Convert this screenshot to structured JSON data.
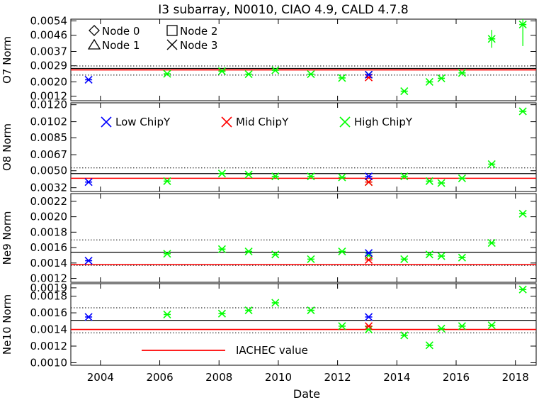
{
  "title": "I3 subarray,   N0010, CIAO 4.9, CALD 4.7.8",
  "xlabel": "Date",
  "x_ticks": [
    2004,
    2006,
    2008,
    2010,
    2012,
    2014,
    2016,
    2018
  ],
  "xlim": [
    2003.0,
    2018.7
  ],
  "node_legend": [
    {
      "symbol": "diamond",
      "label": "Node 0"
    },
    {
      "symbol": "square",
      "label": "Node 2"
    },
    {
      "symbol": "triangle",
      "label": "Node 1"
    },
    {
      "symbol": "x",
      "label": "Node 3"
    }
  ],
  "chipy_legend": [
    {
      "label": "Low ChipY",
      "color": "#0000ff"
    },
    {
      "label": "Mid ChipY",
      "color": "#ff0000"
    },
    {
      "label": "High ChipY",
      "color": "#00ff00"
    }
  ],
  "iachec_legend": {
    "label": "IACHEC value",
    "color": "#ff0000"
  },
  "chart_data": [
    {
      "type": "scatter",
      "panel": "O7",
      "ylabel": "O7 Norm",
      "ylim": [
        0.00095,
        0.0055
      ],
      "y_ticks": [
        "0.0054",
        "0.0046",
        "0.0037",
        "0.0029",
        "0.0020",
        "0.0012"
      ],
      "y_tick_values": [
        0.0054,
        0.0046,
        0.0037,
        0.0029,
        0.002,
        0.0012
      ],
      "iachec": 0.00267,
      "mean": 0.00275,
      "dotted": [
        0.00289,
        0.00238
      ],
      "series": [
        {
          "name": "Low ChipY",
          "color": "#0000ff",
          "points": [
            {
              "x": 2003.6,
              "y": 0.00212
            },
            {
              "x": 2013.05,
              "y": 0.0024
            }
          ]
        },
        {
          "name": "Mid ChipY",
          "color": "#ff0000",
          "points": [
            {
              "x": 2013.05,
              "y": 0.00225
            }
          ]
        },
        {
          "name": "High ChipY",
          "color": "#00ff00",
          "points": [
            {
              "x": 2006.25,
              "y": 0.00245
            },
            {
              "x": 2008.1,
              "y": 0.0026
            },
            {
              "x": 2009.0,
              "y": 0.00243
            },
            {
              "x": 2009.9,
              "y": 0.00265
            },
            {
              "x": 2011.1,
              "y": 0.00243
            },
            {
              "x": 2012.15,
              "y": 0.00222
            },
            {
              "x": 2013.05,
              "y": 0.0024
            },
            {
              "x": 2014.25,
              "y": 0.00148
            },
            {
              "x": 2015.1,
              "y": 0.002
            },
            {
              "x": 2015.5,
              "y": 0.0022
            },
            {
              "x": 2016.2,
              "y": 0.0025
            },
            {
              "x": 2017.2,
              "y": 0.0044,
              "err": 0.0005
            },
            {
              "x": 2018.25,
              "y": 0.0052,
              "err": 0.0012
            }
          ]
        }
      ]
    },
    {
      "type": "scatter",
      "panel": "O8",
      "ylabel": "O8 Norm",
      "ylim": [
        0.0028,
        0.0122
      ],
      "y_ticks": [
        "0.0120",
        "0.0102",
        "0.0085",
        "0.0067",
        "0.0050",
        "0.0032"
      ],
      "y_tick_values": [
        0.012,
        0.0102,
        0.0085,
        0.0067,
        0.005,
        0.0032
      ],
      "iachec": 0.0042,
      "mean": 0.0047,
      "dotted": [
        0.0053
      ],
      "series": [
        {
          "name": "Low ChipY",
          "color": "#0000ff",
          "points": [
            {
              "x": 2003.6,
              "y": 0.0038
            },
            {
              "x": 2013.05,
              "y": 0.0044
            }
          ]
        },
        {
          "name": "Mid ChipY",
          "color": "#ff0000",
          "points": [
            {
              "x": 2013.05,
              "y": 0.0038
            }
          ]
        },
        {
          "name": "High ChipY",
          "color": "#00ff00",
          "points": [
            {
              "x": 2006.25,
              "y": 0.0039
            },
            {
              "x": 2008.1,
              "y": 0.0047
            },
            {
              "x": 2009.0,
              "y": 0.0046
            },
            {
              "x": 2009.9,
              "y": 0.0044
            },
            {
              "x": 2011.1,
              "y": 0.0044
            },
            {
              "x": 2012.15,
              "y": 0.0043
            },
            {
              "x": 2013.05,
              "y": 0.0038
            },
            {
              "x": 2014.25,
              "y": 0.0044
            },
            {
              "x": 2015.1,
              "y": 0.0039
            },
            {
              "x": 2015.5,
              "y": 0.0037
            },
            {
              "x": 2016.2,
              "y": 0.0042
            },
            {
              "x": 2017.2,
              "y": 0.0057
            },
            {
              "x": 2018.25,
              "y": 0.0113
            }
          ]
        }
      ]
    },
    {
      "type": "scatter",
      "panel": "Ne9",
      "ylabel": "Ne9 Norm",
      "ylim": [
        0.00115,
        0.0023
      ],
      "y_ticks": [
        "0.0022",
        "0.0020",
        "0.0018",
        "0.0016",
        "0.0014",
        "0.0012"
      ],
      "y_tick_values": [
        0.0022,
        0.002,
        0.0018,
        0.0016,
        0.0014,
        0.0012
      ],
      "iachec": 0.00138,
      "mean": 0.00154,
      "dotted": [
        0.0017,
        0.00137
      ],
      "series": [
        {
          "name": "Low ChipY",
          "color": "#0000ff",
          "points": [
            {
              "x": 2003.6,
              "y": 0.00143
            },
            {
              "x": 2013.05,
              "y": 0.00153
            }
          ]
        },
        {
          "name": "Mid ChipY",
          "color": "#ff0000",
          "points": [
            {
              "x": 2013.05,
              "y": 0.00144
            }
          ]
        },
        {
          "name": "High ChipY",
          "color": "#00ff00",
          "points": [
            {
              "x": 2006.25,
              "y": 0.00152
            },
            {
              "x": 2008.1,
              "y": 0.00158
            },
            {
              "x": 2009.0,
              "y": 0.00155
            },
            {
              "x": 2009.9,
              "y": 0.00151
            },
            {
              "x": 2011.1,
              "y": 0.00145
            },
            {
              "x": 2012.15,
              "y": 0.00155
            },
            {
              "x": 2013.05,
              "y": 0.0015
            },
            {
              "x": 2014.25,
              "y": 0.00145
            },
            {
              "x": 2015.1,
              "y": 0.00151
            },
            {
              "x": 2015.5,
              "y": 0.00149
            },
            {
              "x": 2016.2,
              "y": 0.00147
            },
            {
              "x": 2017.2,
              "y": 0.00166
            },
            {
              "x": 2018.25,
              "y": 0.00204
            }
          ]
        }
      ]
    },
    {
      "type": "scatter",
      "panel": "Ne10",
      "ylabel": "Ne10 Norm",
      "ylim": [
        0.00097,
        0.00195
      ],
      "y_ticks": [
        "0.0019",
        "0.0018",
        "0.0016",
        "0.0014",
        "0.0012",
        "0.0010"
      ],
      "y_tick_values": [
        0.0019,
        0.0018,
        0.0016,
        0.0014,
        0.0012,
        0.001
      ],
      "iachec": 0.0014,
      "mean": 0.00151,
      "dotted": [
        0.00166,
        0.00136
      ],
      "series": [
        {
          "name": "Low ChipY",
          "color": "#0000ff",
          "points": [
            {
              "x": 2003.6,
              "y": 0.00155
            },
            {
              "x": 2013.05,
              "y": 0.00155
            }
          ]
        },
        {
          "name": "Mid ChipY",
          "color": "#ff0000",
          "points": [
            {
              "x": 2013.05,
              "y": 0.00144
            }
          ]
        },
        {
          "name": "High ChipY",
          "color": "#00ff00",
          "points": [
            {
              "x": 2006.25,
              "y": 0.00158
            },
            {
              "x": 2008.1,
              "y": 0.00159
            },
            {
              "x": 2009.0,
              "y": 0.00163
            },
            {
              "x": 2009.9,
              "y": 0.00172
            },
            {
              "x": 2011.1,
              "y": 0.00163
            },
            {
              "x": 2012.15,
              "y": 0.00144
            },
            {
              "x": 2013.05,
              "y": 0.0014
            },
            {
              "x": 2014.25,
              "y": 0.00133
            },
            {
              "x": 2015.1,
              "y": 0.00121
            },
            {
              "x": 2015.5,
              "y": 0.00141
            },
            {
              "x": 2016.2,
              "y": 0.00144
            },
            {
              "x": 2017.2,
              "y": 0.00145
            },
            {
              "x": 2018.25,
              "y": 0.00188
            }
          ]
        }
      ]
    }
  ]
}
